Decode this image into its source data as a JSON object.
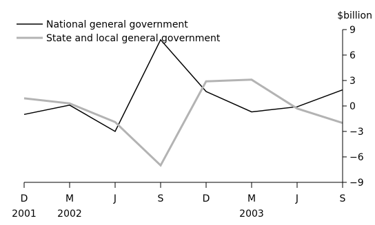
{
  "chart_data": {
    "type": "line",
    "title": "",
    "xlabel": "",
    "ylabel": "$billion",
    "ylim": [
      -9,
      9
    ],
    "yticks": [
      9,
      6,
      3,
      0,
      -3,
      -6,
      -9
    ],
    "ytick_labels": [
      "9",
      "6",
      "3",
      "0",
      "−3",
      "−6",
      "−9"
    ],
    "categories": [
      "Dec 2001",
      "Mar 2002",
      "Jun 2002",
      "Sep 2002",
      "Dec 2002",
      "Mar 2003",
      "Jun 2003",
      "Sep 2003"
    ],
    "month_labels": [
      "D",
      "M",
      "J",
      "S",
      "D",
      "M",
      "J",
      "S"
    ],
    "year_labels": [
      {
        "label": "2001",
        "index": 0
      },
      {
        "label": "2002",
        "index": 1
      },
      {
        "label": "2003",
        "index": 5
      }
    ],
    "legend_position": "top-left",
    "grid": false,
    "series": [
      {
        "name": "National general government",
        "color": "#000000",
        "values": [
          -1.0,
          0.1,
          -3.0,
          7.8,
          1.7,
          -0.7,
          -0.1,
          1.9
        ]
      },
      {
        "name": "State and local general government",
        "color": "#b3b3b3",
        "values": [
          0.9,
          0.3,
          -1.9,
          -7.0,
          2.9,
          3.1,
          -0.3,
          -2.0
        ]
      }
    ]
  }
}
